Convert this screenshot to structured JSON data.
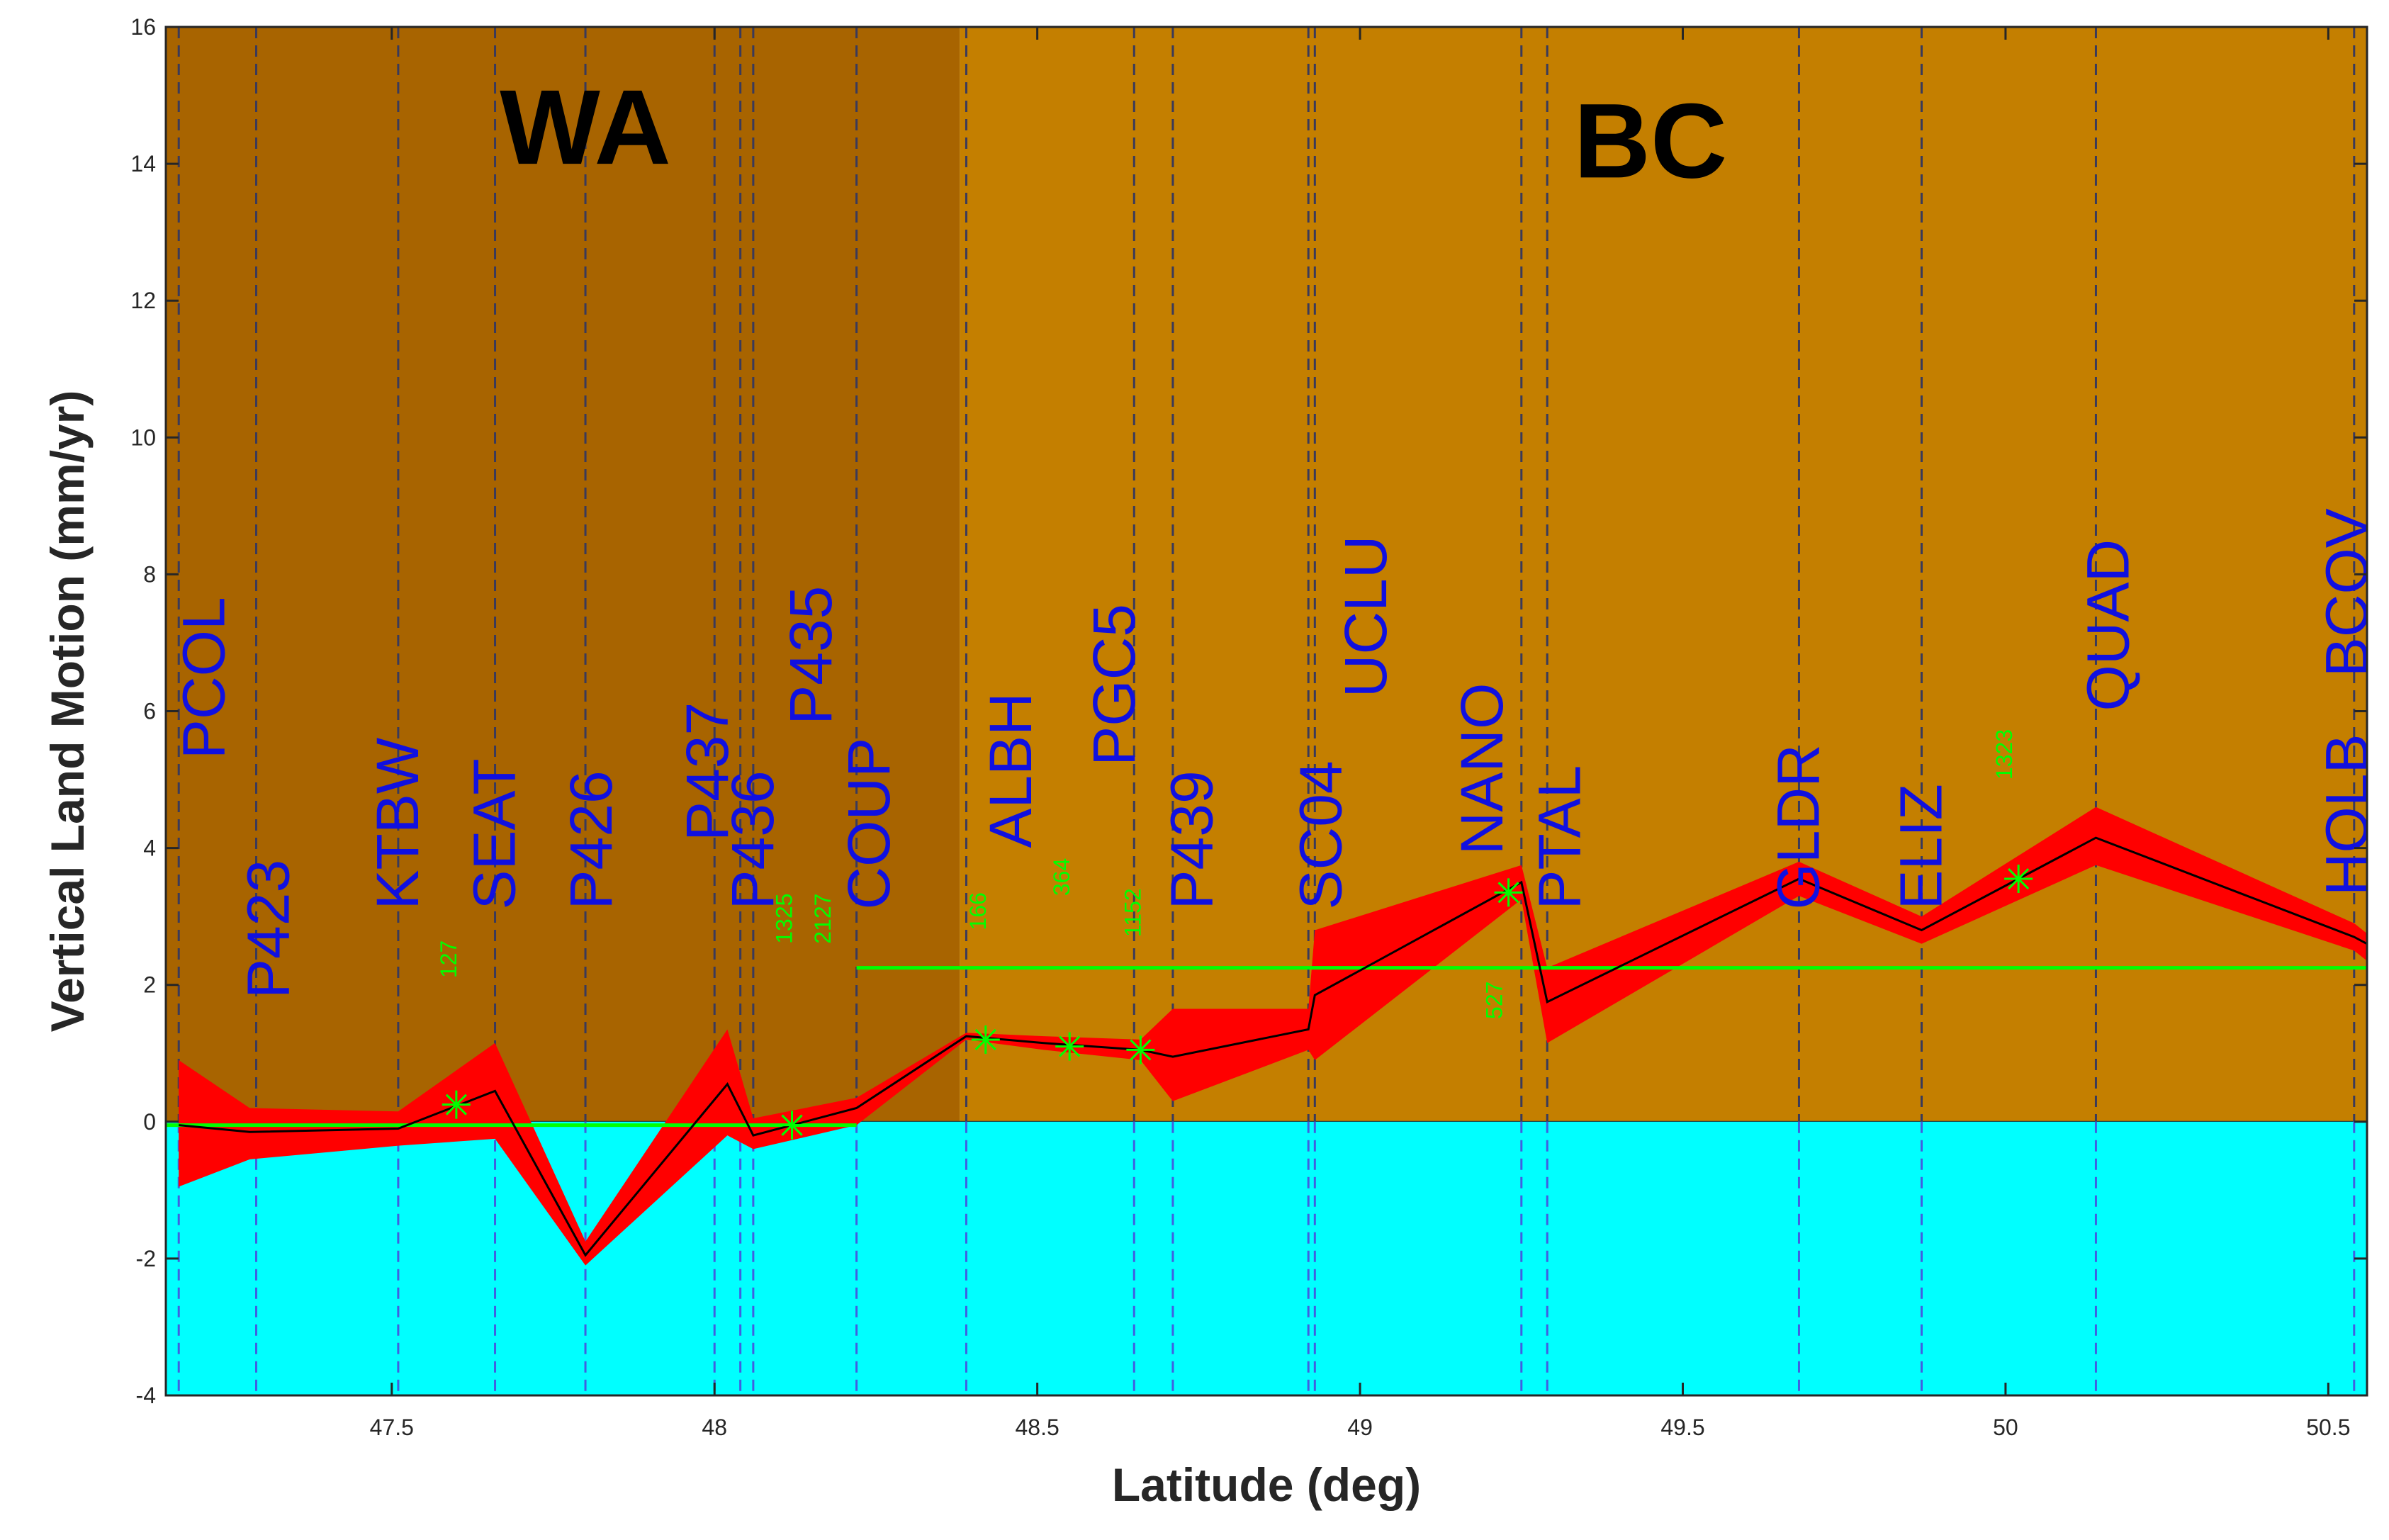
{
  "chart_data": {
    "type": "line",
    "xlabel": "Latitude (deg)",
    "ylabel": "Vertical Land Motion (mm/yr)",
    "xlim": [
      47.15,
      50.56
    ],
    "ylim": [
      -4,
      16
    ],
    "x_ticks": [
      47.5,
      48,
      48.5,
      49,
      49.5,
      50,
      50.5
    ],
    "x_tick_labels": [
      "47.5",
      "48",
      "48.5",
      "49",
      "49.5",
      "50",
      "50.5"
    ],
    "y_ticks": [
      -4,
      -2,
      0,
      2,
      4,
      6,
      8,
      10,
      12,
      14,
      16
    ],
    "y_tick_labels": [
      "-4",
      "-2",
      "0",
      "2",
      "4",
      "6",
      "8",
      "10",
      "12",
      "14",
      "16"
    ],
    "regions": [
      {
        "label": "WA",
        "x_start": 47.15,
        "x_end": 48.38,
        "color": "#a86400",
        "label_x": 47.8,
        "label_y": 14.0
      },
      {
        "label": "BC",
        "x_start": 48.38,
        "x_end": 50.56,
        "color": "#c47f00",
        "label_x": 49.45,
        "label_y": 13.8
      }
    ],
    "below_zero_fill": "#00ffff",
    "series": [
      {
        "name": "vertical land motion",
        "color": "#000000",
        "x": [
          47.17,
          47.28,
          47.51,
          47.66,
          47.8,
          48.02,
          48.06,
          48.22,
          48.39,
          48.51,
          48.66,
          48.71,
          48.92,
          48.93,
          49.25,
          49.29,
          49.68,
          49.87,
          50.14,
          50.54,
          50.56
        ],
        "y": [
          -0.05,
          -0.15,
          -0.1,
          0.45,
          -1.95,
          0.55,
          -0.2,
          0.2,
          1.25,
          1.15,
          1.05,
          0.95,
          1.35,
          1.85,
          3.5,
          1.75,
          3.55,
          2.8,
          4.15,
          2.7,
          2.6
        ],
        "upper": [
          0.9,
          0.2,
          0.15,
          1.15,
          -1.75,
          1.35,
          0.05,
          0.35,
          1.3,
          1.25,
          1.2,
          1.65,
          1.65,
          2.8,
          3.75,
          2.25,
          3.8,
          3.0,
          4.6,
          2.9,
          2.75
        ],
        "lower": [
          -0.95,
          -0.55,
          -0.35,
          -0.25,
          -2.1,
          -0.2,
          -0.4,
          -0.05,
          1.2,
          1.05,
          0.9,
          0.3,
          1.05,
          0.9,
          3.25,
          1.15,
          3.3,
          2.6,
          3.75,
          2.5,
          2.35
        ],
        "band_color": "#ff0000"
      }
    ],
    "reference_lines": [
      {
        "name": "zero reference",
        "color": "#00ff00",
        "x_start": 47.15,
        "x_end": 48.22,
        "y": -0.05
      },
      {
        "name": "mean level",
        "color": "#00ff00",
        "x_start": 48.22,
        "x_end": 50.56,
        "y": 2.25
      }
    ],
    "stations": [
      {
        "name": "PCOL",
        "x": 47.17,
        "label_x": 47.21,
        "label_y": 5.3
      },
      {
        "name": "P423",
        "x": 47.29,
        "label_x": 47.31,
        "label_y": 1.8
      },
      {
        "name": "KTBW",
        "x": 47.51,
        "label_x": 47.51,
        "label_y": 3.1
      },
      {
        "name": "SEAT",
        "x": 47.66,
        "label_x": 47.66,
        "label_y": 3.1
      },
      {
        "name": "P426",
        "x": 47.8,
        "label_x": 47.81,
        "label_y": 3.1
      },
      {
        "name": "P437",
        "x": 48.0,
        "label_x": 47.99,
        "label_y": 4.1
      },
      {
        "name": "P436",
        "x": 48.04,
        "label_x": 48.06,
        "label_y": 3.1
      },
      {
        "name": "P435",
        "x": 48.06,
        "label_x": 48.15,
        "label_y": 5.8
      },
      {
        "name": "COUP",
        "x": 48.22,
        "label_x": 48.24,
        "label_y": 3.1
      },
      {
        "name": "ALBH",
        "x": 48.39,
        "label_x": 48.46,
        "label_y": 4.0
      },
      {
        "name": "PGC5",
        "x": 48.65,
        "label_x": 48.62,
        "label_y": 5.2
      },
      {
        "name": "P439",
        "x": 48.71,
        "label_x": 48.74,
        "label_y": 3.1
      },
      {
        "name": "SC04",
        "x": 48.92,
        "label_x": 48.94,
        "label_y": 3.1
      },
      {
        "name": "UCLU",
        "x": 48.93,
        "label_x": 49.01,
        "label_y": 6.2
      },
      {
        "name": "NANO",
        "x": 49.25,
        "label_x": 49.19,
        "label_y": 3.9
      },
      {
        "name": "PTAL",
        "x": 49.29,
        "label_x": 49.31,
        "label_y": 3.1
      },
      {
        "name": "GLDR",
        "x": 49.68,
        "label_x": 49.68,
        "label_y": 3.1
      },
      {
        "name": "ELIZ",
        "x": 49.87,
        "label_x": 49.87,
        "label_y": 3.1
      },
      {
        "name": "QUAD",
        "x": 50.14,
        "label_x": 50.16,
        "label_y": 6.0
      },
      {
        "name": "HOLB",
        "x": 50.54,
        "label_x": 50.53,
        "label_y": 3.3
      },
      {
        "name": "BCOV",
        "x": 50.56,
        "label_x": 50.53,
        "label_y": 6.5
      }
    ],
    "markers": [
      {
        "x": 47.6,
        "y": 0.25,
        "count": "127",
        "label_x": 47.6,
        "label_y": 2.1
      },
      {
        "x": 48.12,
        "y": -0.05,
        "count": "1325",
        "label_x": 48.12,
        "label_y": 2.6
      },
      {
        "x": 48.12,
        "y": -0.05,
        "count": "2127",
        "label_x": 48.18,
        "label_y": 2.6
      },
      {
        "x": 48.42,
        "y": 1.2,
        "count": "166",
        "label_x": 48.42,
        "label_y": 2.8
      },
      {
        "x": 48.55,
        "y": 1.1,
        "count": "364",
        "label_x": 48.55,
        "label_y": 3.3
      },
      {
        "x": 48.66,
        "y": 1.05,
        "count": "1152",
        "label_x": 48.66,
        "label_y": 2.7
      },
      {
        "x": 49.23,
        "y": 3.35,
        "count": "527",
        "label_x": 49.22,
        "label_y": 1.5
      },
      {
        "x": 50.02,
        "y": 3.55,
        "count": "1323",
        "label_x": 50.01,
        "label_y": 5.0
      }
    ]
  }
}
